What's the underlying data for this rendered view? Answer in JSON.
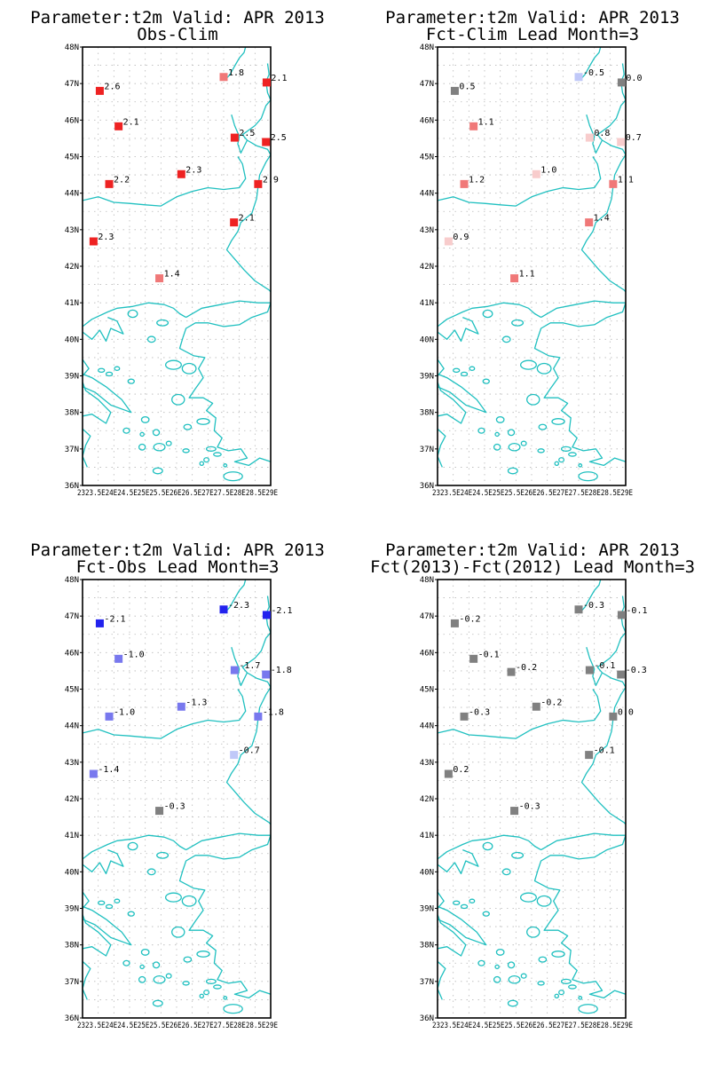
{
  "colors": {
    "coast": "#20c0c0",
    "grid": "#b8b8b8",
    "strong_positive": "#ee2222",
    "medium_positive": "#f07878",
    "weak_positive": "#f8cccc",
    "near_zero": "#808080",
    "weak_negative": "#c0c8f8",
    "medium_negative": "#7878ee",
    "strong_negative": "#2222ee"
  },
  "axes": {
    "lat_labels": [
      "48N",
      "47N",
      "46N",
      "45N",
      "44N",
      "43N",
      "42N",
      "41N",
      "40N",
      "39N",
      "38N",
      "37N",
      "36N"
    ],
    "lon_labels": [
      "23E",
      "23.5E",
      "24E",
      "24.5E",
      "25E",
      "25.5E",
      "26E",
      "26.5E",
      "27E",
      "27.5E",
      "28E",
      "28.5E",
      "29E"
    ],
    "lon_label_strip": "2323.5E24E24.5E25E25.5E26E26.5E27E27.5E28E28.5E29E",
    "lat_range": [
      36,
      48
    ],
    "lon_range": [
      23,
      29
    ]
  },
  "chart_data": [
    {
      "type": "map",
      "title": "Parameter:t2m Valid: APR 2013",
      "subtitle": "Obs-Clim",
      "points": [
        {
          "lon": 23.55,
          "lat": 46.8,
          "value": "2.6",
          "color": "#ee2222"
        },
        {
          "lon": 24.15,
          "lat": 45.83,
          "value": "2.1",
          "color": "#ee2222"
        },
        {
          "lon": 23.85,
          "lat": 44.25,
          "value": "2.2",
          "color": "#ee2222"
        },
        {
          "lon": 26.15,
          "lat": 44.52,
          "value": "2.3",
          "color": "#ee2222"
        },
        {
          "lon": 23.35,
          "lat": 42.68,
          "value": "2.3",
          "color": "#ee2222"
        },
        {
          "lon": 25.45,
          "lat": 41.67,
          "value": "1.4",
          "color": "#f07878"
        },
        {
          "lon": 27.5,
          "lat": 47.18,
          "value": "1.8",
          "color": "#f07878"
        },
        {
          "lon": 28.87,
          "lat": 47.03,
          "value": "2.1",
          "color": "#ee2222"
        },
        {
          "lon": 27.85,
          "lat": 45.52,
          "value": "2.5",
          "color": "#ee2222"
        },
        {
          "lon": 28.85,
          "lat": 45.4,
          "value": "2.5",
          "color": "#ee2222"
        },
        {
          "lon": 28.6,
          "lat": 44.25,
          "value": "2.9",
          "color": "#ee2222"
        },
        {
          "lon": 27.83,
          "lat": 43.2,
          "value": "2.1",
          "color": "#ee2222"
        }
      ]
    },
    {
      "type": "map",
      "title": "Parameter:t2m Valid: APR 2013",
      "subtitle": "Fct-Clim Lead Month=3",
      "points": [
        {
          "lon": 23.55,
          "lat": 46.8,
          "value": "0.5",
          "color": "#808080"
        },
        {
          "lon": 24.15,
          "lat": 45.83,
          "value": "1.1",
          "color": "#f07878"
        },
        {
          "lon": 23.85,
          "lat": 44.25,
          "value": "1.2",
          "color": "#f07878"
        },
        {
          "lon": 26.15,
          "lat": 44.52,
          "value": "1.0",
          "color": "#f8cccc"
        },
        {
          "lon": 23.35,
          "lat": 42.68,
          "value": "0.9",
          "color": "#f8cccc"
        },
        {
          "lon": 25.45,
          "lat": 41.67,
          "value": "1.1",
          "color": "#f07878"
        },
        {
          "lon": 27.5,
          "lat": 47.18,
          "value": "-0.5",
          "color": "#c0c8f8"
        },
        {
          "lon": 28.87,
          "lat": 47.03,
          "value": "0.0",
          "color": "#808080"
        },
        {
          "lon": 27.85,
          "lat": 45.52,
          "value": "0.8",
          "color": "#f8cccc"
        },
        {
          "lon": 28.85,
          "lat": 45.4,
          "value": "0.7",
          "color": "#f8cccc"
        },
        {
          "lon": 28.6,
          "lat": 44.25,
          "value": "1.1",
          "color": "#f07878"
        },
        {
          "lon": 27.83,
          "lat": 43.2,
          "value": "1.4",
          "color": "#f07878"
        }
      ]
    },
    {
      "type": "map",
      "title": "Parameter:t2m Valid: APR 2013",
      "subtitle": "Fct-Obs Lead Month=3",
      "points": [
        {
          "lon": 23.55,
          "lat": 46.8,
          "value": "-2.1",
          "color": "#2222ee"
        },
        {
          "lon": 24.15,
          "lat": 45.83,
          "value": "-1.0",
          "color": "#7878ee"
        },
        {
          "lon": 23.85,
          "lat": 44.25,
          "value": "-1.0",
          "color": "#7878ee"
        },
        {
          "lon": 26.15,
          "lat": 44.52,
          "value": "-1.3",
          "color": "#7878ee"
        },
        {
          "lon": 23.35,
          "lat": 42.68,
          "value": "-1.4",
          "color": "#7878ee"
        },
        {
          "lon": 25.45,
          "lat": 41.67,
          "value": "-0.3",
          "color": "#808080"
        },
        {
          "lon": 27.5,
          "lat": 47.18,
          "value": "-2.3",
          "color": "#2222ee"
        },
        {
          "lon": 28.87,
          "lat": 47.03,
          "value": "-2.1",
          "color": "#2222ee"
        },
        {
          "lon": 27.85,
          "lat": 45.52,
          "value": "-1.7",
          "color": "#7878ee"
        },
        {
          "lon": 28.85,
          "lat": 45.4,
          "value": "-1.8",
          "color": "#7878ee"
        },
        {
          "lon": 28.6,
          "lat": 44.25,
          "value": "-1.8",
          "color": "#7878ee"
        },
        {
          "lon": 27.83,
          "lat": 43.2,
          "value": "-0.7",
          "color": "#c0c8f8"
        }
      ]
    },
    {
      "type": "map",
      "title": "Parameter:t2m Valid: APR 2013",
      "subtitle": "Fct(2013)-Fct(2012) Lead Month=3",
      "points": [
        {
          "lon": 23.55,
          "lat": 46.8,
          "value": "-0.2",
          "color": "#808080"
        },
        {
          "lon": 24.15,
          "lat": 45.83,
          "value": "-0.1",
          "color": "#808080"
        },
        {
          "lon": 23.85,
          "lat": 44.25,
          "value": "-0.3",
          "color": "#808080"
        },
        {
          "lon": 26.15,
          "lat": 44.52,
          "value": "-0.2",
          "color": "#808080"
        },
        {
          "lon": 23.35,
          "lat": 42.68,
          "value": "0.2",
          "color": "#808080"
        },
        {
          "lon": 25.45,
          "lat": 41.67,
          "value": "-0.3",
          "color": "#808080"
        },
        {
          "lon": 25.35,
          "lat": 45.47,
          "value": "-0.2",
          "color": "#808080"
        },
        {
          "lon": 27.5,
          "lat": 47.18,
          "value": "-0.3",
          "color": "#808080"
        },
        {
          "lon": 28.87,
          "lat": 47.03,
          "value": "-0.1",
          "color": "#808080"
        },
        {
          "lon": 27.85,
          "lat": 45.52,
          "value": "-0.1",
          "color": "#808080"
        },
        {
          "lon": 28.85,
          "lat": 45.4,
          "value": "-0.3",
          "color": "#808080"
        },
        {
          "lon": 28.6,
          "lat": 44.25,
          "value": "0.0",
          "color": "#808080"
        },
        {
          "lon": 27.83,
          "lat": 43.2,
          "value": "-0.1",
          "color": "#808080"
        }
      ]
    }
  ]
}
